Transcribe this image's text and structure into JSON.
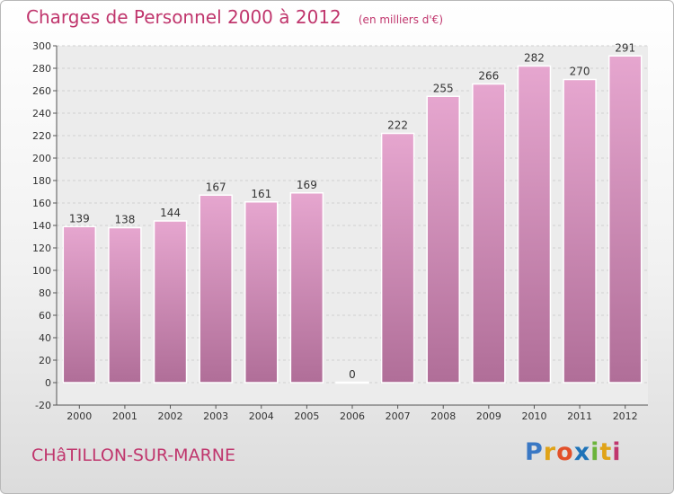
{
  "header": {
    "title": "Charges de Personnel 2000 à 2012",
    "subtitle": "(en milliers d'€)"
  },
  "footer": {
    "commune": "CHâTILLON-SUR-MARNE",
    "logo_letters": [
      "P",
      "r",
      "o",
      "x",
      "i",
      "t",
      "i"
    ],
    "logo_colors": [
      "#3a78c4",
      "#e0a318",
      "#e2502a",
      "#1e73b8",
      "#6bb43a",
      "#e0a318",
      "#c0366d"
    ]
  },
  "colors": {
    "accent": "#c0366d",
    "bar_top": "#e6a6cf",
    "bar_bottom": "#b06e98",
    "grid": "#cfcfcf"
  },
  "chart_data": {
    "type": "bar",
    "title": "Charges de Personnel 2000 à 2012",
    "subtitle": "(en milliers d'€)",
    "categories": [
      "2000",
      "2001",
      "2002",
      "2003",
      "2004",
      "2005",
      "2006",
      "2007",
      "2008",
      "2009",
      "2010",
      "2011",
      "2012"
    ],
    "values": [
      139,
      138,
      144,
      167,
      161,
      169,
      0,
      222,
      255,
      266,
      282,
      270,
      291
    ],
    "ylim": [
      -20,
      300
    ],
    "yticks": [
      -20,
      0,
      20,
      40,
      60,
      80,
      100,
      120,
      140,
      160,
      180,
      200,
      220,
      240,
      260,
      280,
      300
    ],
    "grid": true,
    "data_labels": true
  }
}
